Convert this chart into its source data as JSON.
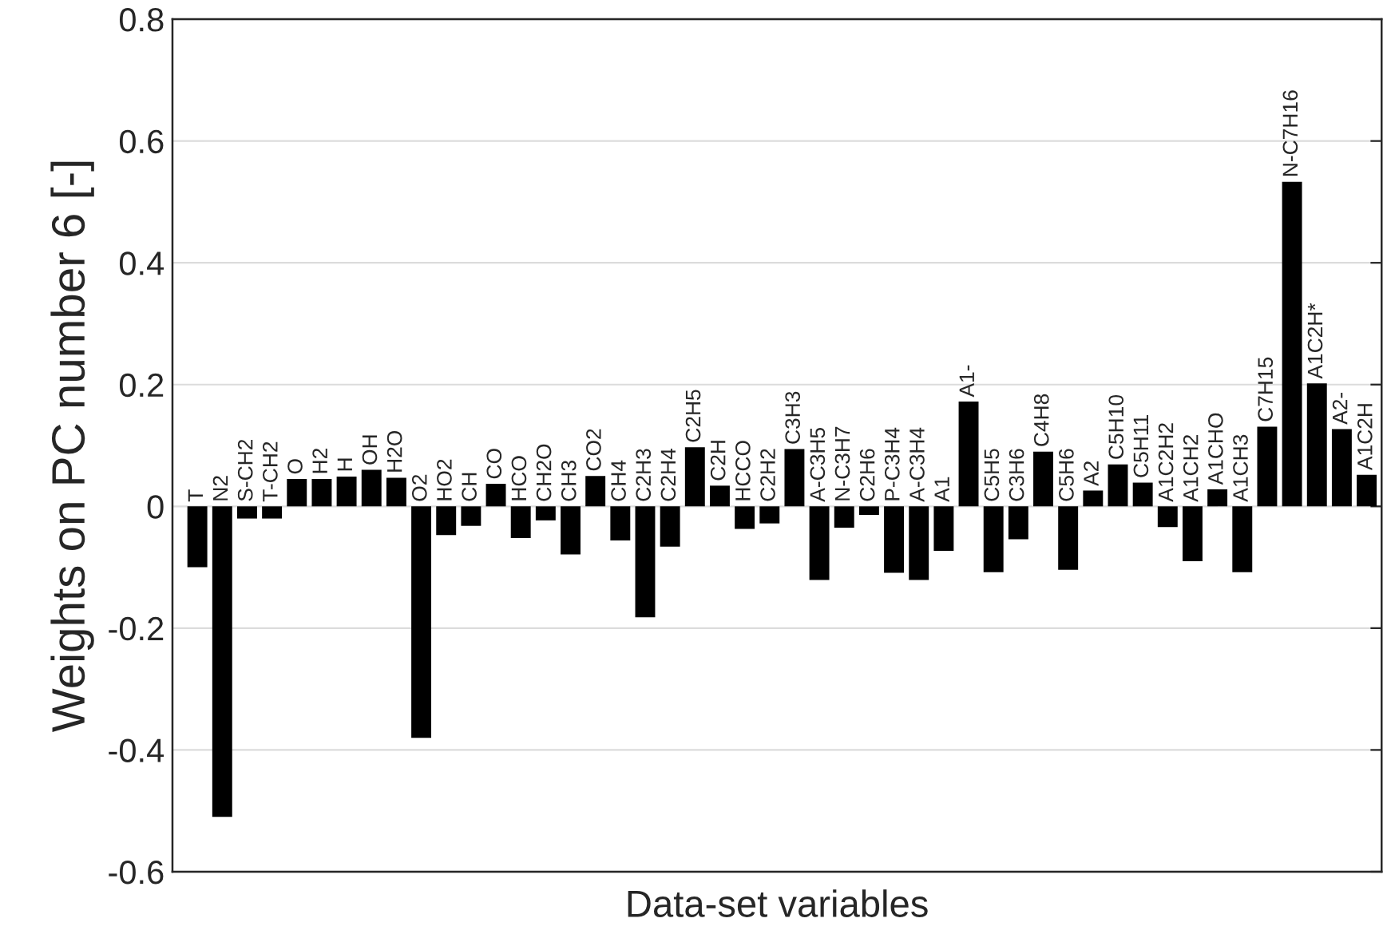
{
  "chart_data": {
    "type": "bar",
    "xlabel": "Data-set variables",
    "ylabel": "Weights on PC number 6 [-]",
    "categories": [
      "T",
      "N2",
      "S-CH2",
      "T-CH2",
      "O",
      "H2",
      "H",
      "OH",
      "H2O",
      "O2",
      "HO2",
      "CH",
      "CO",
      "HCO",
      "CH2O",
      "CH3",
      "CO2",
      "CH4",
      "C2H3",
      "C2H4",
      "C2H5",
      "C2H",
      "HCCO",
      "C2H2",
      "C3H3",
      "A-C3H5",
      "N-C3H7",
      "C2H6",
      "P-C3H4",
      "A-C3H4",
      "A1",
      "A1-",
      "C5H5",
      "C3H6",
      "C4H8",
      "C5H6",
      "A2",
      "C5H10",
      "C5H11",
      "A1C2H2",
      "A1CH2",
      "A1CHO",
      "A1CH3",
      "C7H15",
      "N-C7H16",
      "A1C2H*",
      "A2-",
      "A1C2H"
    ],
    "values": [
      -0.1,
      -0.51,
      -0.02,
      -0.02,
      0.045,
      0.045,
      0.049,
      0.06,
      0.047,
      -0.38,
      -0.047,
      -0.032,
      0.037,
      -0.052,
      -0.023,
      -0.079,
      0.05,
      -0.056,
      -0.182,
      -0.066,
      0.097,
      0.034,
      -0.037,
      -0.028,
      0.094,
      -0.121,
      -0.035,
      -0.014,
      -0.109,
      -0.121,
      -0.073,
      0.172,
      -0.108,
      -0.054,
      0.09,
      -0.104,
      0.026,
      0.069,
      0.039,
      -0.034,
      -0.09,
      0.028,
      -0.108,
      0.131,
      0.533,
      0.202,
      0.127,
      0.052
    ],
    "color": "#000000",
    "ylim": [
      -0.6,
      0.8
    ],
    "yticks": [
      -0.6,
      -0.4,
      -0.2,
      0,
      0.2,
      0.4,
      0.6,
      0.8
    ],
    "grid": "y"
  }
}
